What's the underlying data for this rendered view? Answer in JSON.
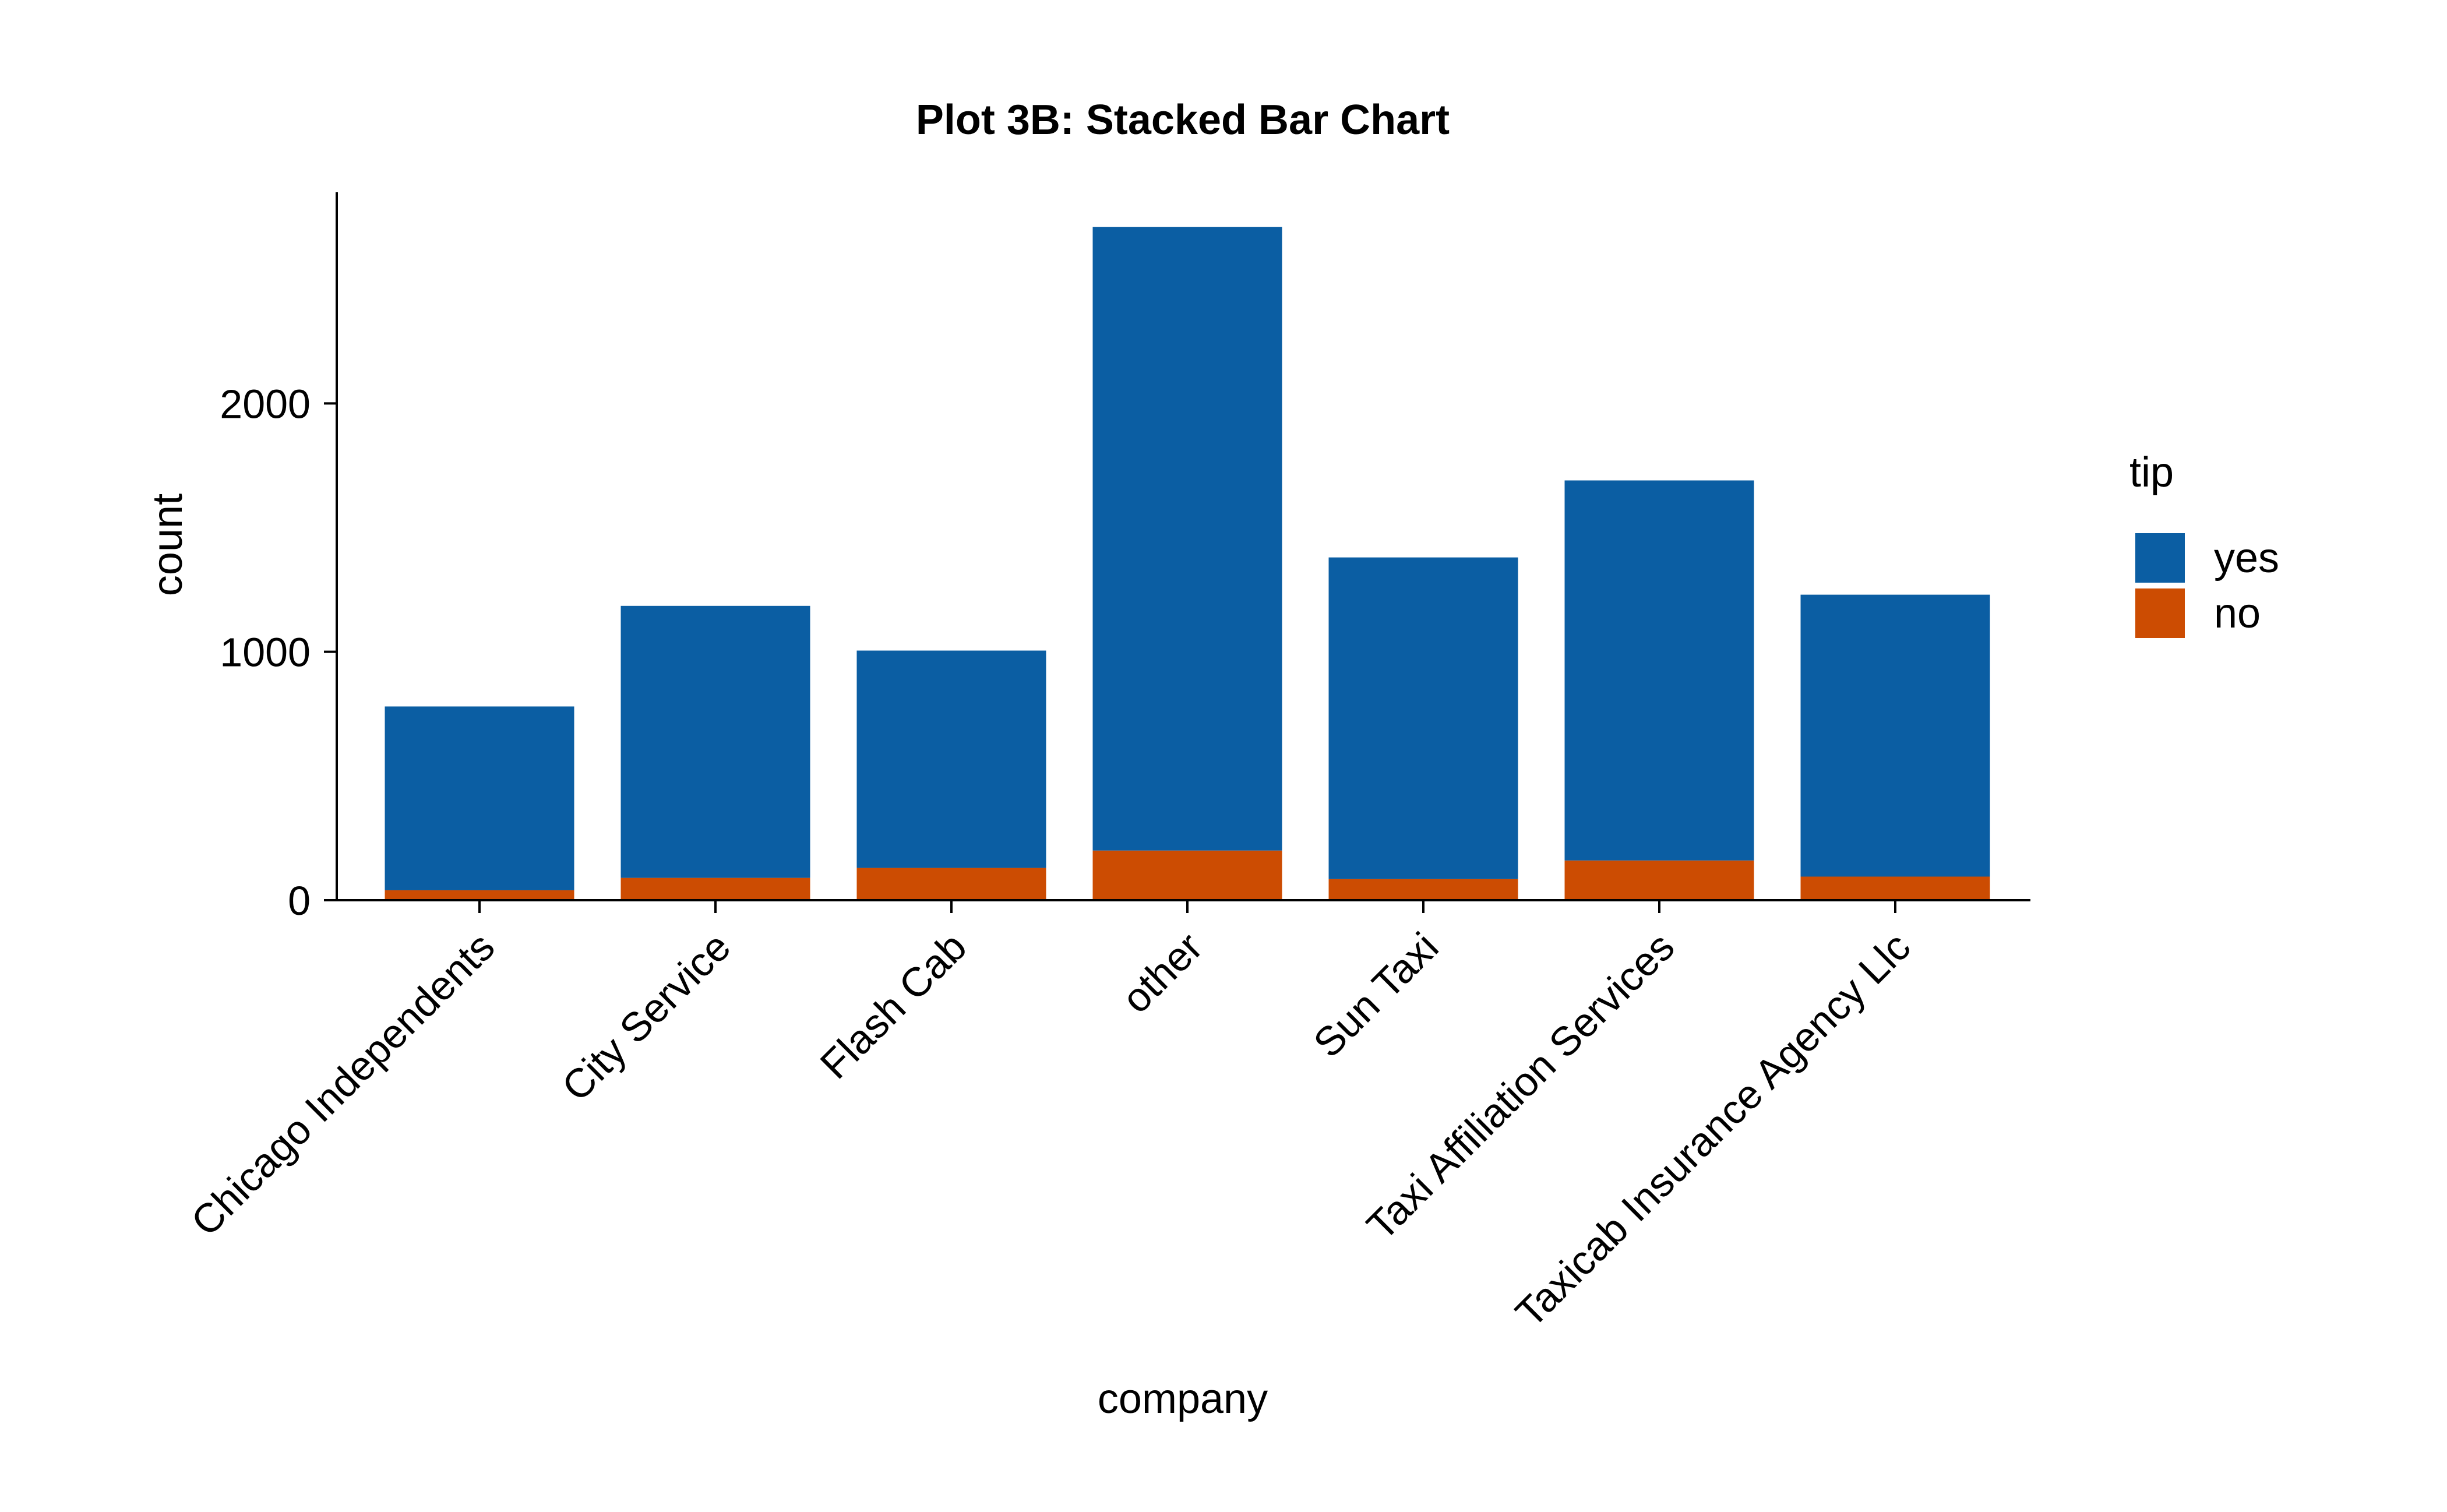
{
  "chart_data": {
    "type": "bar",
    "stacked": true,
    "title": "Plot 3B: Stacked Bar Chart",
    "xlabel": "company",
    "ylabel": "count",
    "categories": [
      "Chicago Independents",
      "City Service",
      "Flash Cab",
      "other",
      "Sun Taxi",
      "Taxi Affiliation Services",
      "Taxicab Insurance Agency Llc"
    ],
    "series": [
      {
        "name": "no",
        "color": "#cc4c02",
        "values": [
          40,
          90,
          130,
          200,
          85,
          160,
          95
        ]
      },
      {
        "name": "yes",
        "color": "#0b5ea3",
        "values": [
          740,
          1095,
          875,
          2510,
          1295,
          1530,
          1135
        ]
      }
    ],
    "ylim": [
      0,
      2850
    ],
    "yticks": [
      0,
      1000,
      2000
    ],
    "grid": false,
    "legend": {
      "title": "tip",
      "placement": "right",
      "entries": [
        {
          "label": "yes",
          "color": "#0b5ea3"
        },
        {
          "label": "no",
          "color": "#cc4c02"
        }
      ]
    }
  }
}
